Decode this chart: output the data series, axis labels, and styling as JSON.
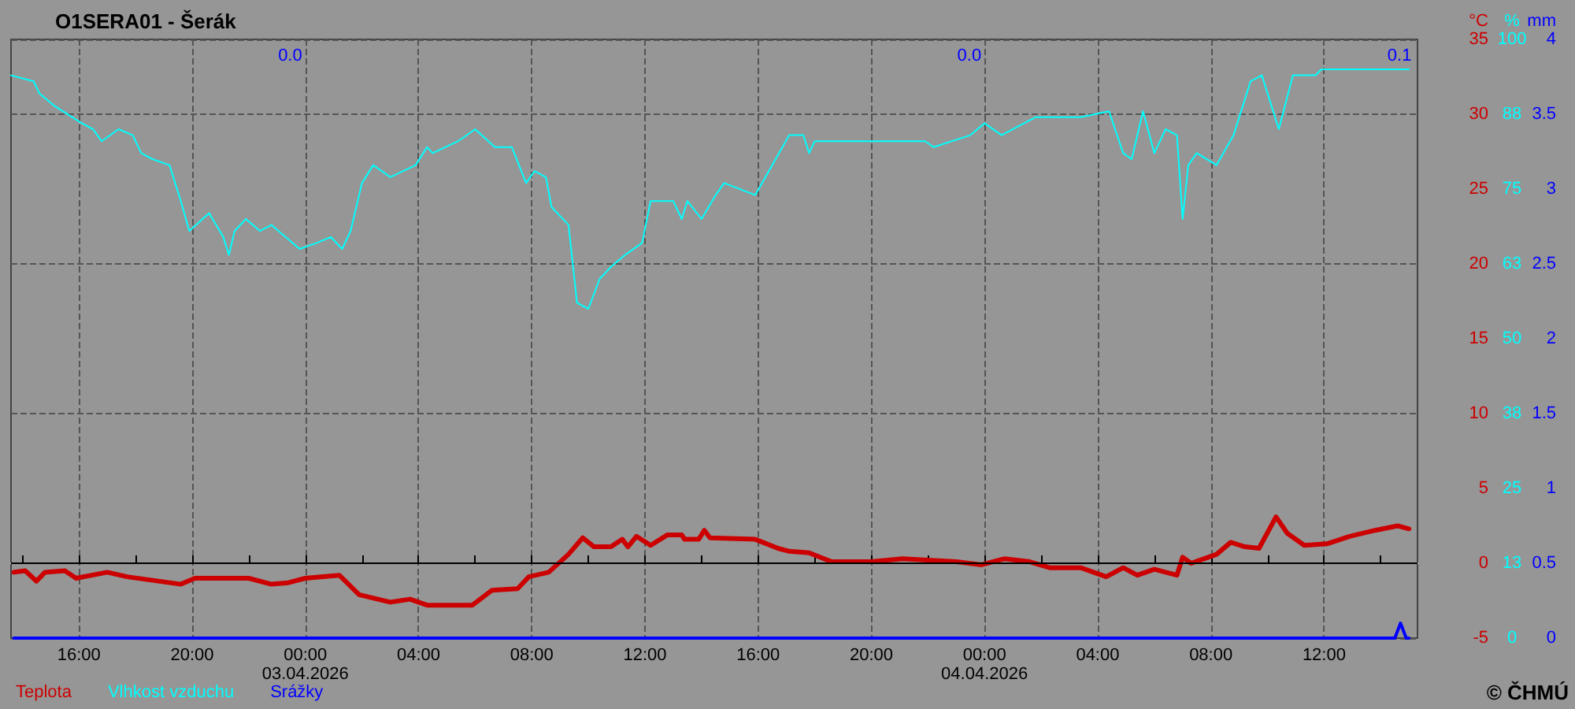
{
  "chart_data": {
    "type": "line",
    "title": "O1SERA01 - Šerák",
    "ylabel": "°C",
    "y2label": "%",
    "y3label": "mm",
    "xlim": [
      "2026-04-02T13:36",
      "2026-04-04T15:18"
    ],
    "xticks": [
      {
        "value": "2026-04-02T14:00",
        "label": null
      },
      {
        "value": "2026-04-02T16:00",
        "label": "16:00"
      },
      {
        "value": "2026-04-02T18:00",
        "label": null
      },
      {
        "value": "2026-04-02T20:00",
        "label": "20:00"
      },
      {
        "value": "2026-04-02T22:00",
        "label": null
      },
      {
        "value": "2026-04-03T00:00",
        "label": "00:00\n03.04.2026"
      },
      {
        "value": "2026-04-03T02:00",
        "label": null
      },
      {
        "value": "2026-04-03T04:00",
        "label": "04:00"
      },
      {
        "value": "2026-04-03T06:00",
        "label": null
      },
      {
        "value": "2026-04-03T08:00",
        "label": "08:00"
      },
      {
        "value": "2026-04-03T10:00",
        "label": null
      },
      {
        "value": "2026-04-03T12:00",
        "label": "12:00"
      },
      {
        "value": "2026-04-03T14:00",
        "label": null
      },
      {
        "value": "2026-04-03T16:00",
        "label": "16:00"
      },
      {
        "value": "2026-04-03T18:00",
        "label": null
      },
      {
        "value": "2026-04-03T20:00",
        "label": "20:00"
      },
      {
        "value": "2026-04-03T22:00",
        "label": null
      },
      {
        "value": "2026-04-04T00:00",
        "label": "00:00\n04.04.2026"
      },
      {
        "value": "2026-04-04T02:00",
        "label": null
      },
      {
        "value": "2026-04-04T04:00",
        "label": "04:00"
      },
      {
        "value": "2026-04-04T06:00",
        "label": null
      },
      {
        "value": "2026-04-04T08:00",
        "label": "08:00"
      },
      {
        "value": "2026-04-04T10:00",
        "label": null
      },
      {
        "value": "2026-04-04T12:00",
        "label": "12:00"
      },
      {
        "value": "2026-04-04T14:00",
        "label": null
      }
    ],
    "ylim": [
      -5,
      35
    ],
    "yticks": [
      -5,
      0,
      5,
      10,
      15,
      20,
      25,
      30,
      35
    ],
    "y2lim": [
      0,
      100
    ],
    "y2ticks": [
      0,
      {
        "value": 12.5,
        "label": "13"
      },
      25,
      {
        "value": 37.5,
        "label": "38"
      },
      50,
      {
        "value": 62.5,
        "label": "63"
      },
      75,
      {
        "value": 87.5,
        "label": "88"
      },
      100
    ],
    "y3lim": [
      0,
      4
    ],
    "y3ticks": [
      0,
      0.5,
      1,
      1.5,
      2,
      2.5,
      3,
      3.5,
      4
    ],
    "grid": true,
    "legend": "bottom left",
    "marker": "none",
    "line_style": "solid",
    "ref_lines": [
      {
        "axis": "y",
        "value": 0,
        "color": "#000000",
        "line_style": "solid"
      }
    ],
    "annotations": [
      "0.0",
      "0.0",
      "0.1",
      "© ČHMÚ"
    ],
    "series": [
      {
        "name": "Teplota",
        "color": "#cc0000",
        "axis": "y",
        "x": [
          "2026-04-02T13:42",
          "2026-04-02T14:06",
          "2026-04-02T14:30",
          "2026-04-02T14:48",
          "2026-04-02T15:30",
          "2026-04-02T15:54",
          "2026-04-02T17:00",
          "2026-04-02T17:42",
          "2026-04-02T19:36",
          "2026-04-02T20:06",
          "2026-04-02T22:00",
          "2026-04-02T22:48",
          "2026-04-02T23:24",
          "2026-04-03T00:00",
          "2026-04-03T01:12",
          "2026-04-03T01:54",
          "2026-04-03T03:00",
          "2026-04-03T03:42",
          "2026-04-03T04:18",
          "2026-04-03T05:54",
          "2026-04-03T06:36",
          "2026-04-03T07:30",
          "2026-04-03T07:54",
          "2026-04-03T08:36",
          "2026-04-03T09:18",
          "2026-04-03T09:48",
          "2026-04-03T10:12",
          "2026-04-03T10:48",
          "2026-04-03T11:12",
          "2026-04-03T11:24",
          "2026-04-03T11:42",
          "2026-04-03T12:12",
          "2026-04-03T12:48",
          "2026-04-03T13:18",
          "2026-04-03T13:24",
          "2026-04-03T13:54",
          "2026-04-03T14:06",
          "2026-04-03T14:18",
          "2026-04-03T15:54",
          "2026-04-03T16:42",
          "2026-04-03T17:06",
          "2026-04-03T17:48",
          "2026-04-03T18:36",
          "2026-04-03T20:00",
          "2026-04-03T21:06",
          "2026-04-03T23:00",
          "2026-04-03T23:54",
          "2026-04-04T00:42",
          "2026-04-04T01:36",
          "2026-04-04T02:18",
          "2026-04-04T03:24",
          "2026-04-04T04:18",
          "2026-04-04T04:54",
          "2026-04-04T05:24",
          "2026-04-04T06:00",
          "2026-04-04T06:48",
          "2026-04-04T07:00",
          "2026-04-04T07:18",
          "2026-04-04T08:12",
          "2026-04-04T08:42",
          "2026-04-04T09:12",
          "2026-04-04T09:42",
          "2026-04-04T10:18",
          "2026-04-04T10:42",
          "2026-04-04T11:18",
          "2026-04-04T12:06",
          "2026-04-04T12:54",
          "2026-04-04T13:48",
          "2026-04-04T14:36",
          "2026-04-04T15:00"
        ],
        "values": [
          -0.6,
          -0.5,
          -1.2,
          -0.6,
          -0.5,
          -1.0,
          -0.6,
          -0.9,
          -1.4,
          -1.0,
          -1.0,
          -1.4,
          -1.3,
          -1.0,
          -0.8,
          -2.1,
          -2.6,
          -2.4,
          -2.8,
          -2.8,
          -1.8,
          -1.7,
          -0.9,
          -0.6,
          0.6,
          1.7,
          1.1,
          1.1,
          1.6,
          1.1,
          1.8,
          1.2,
          1.9,
          1.9,
          1.6,
          1.6,
          2.2,
          1.7,
          1.6,
          1.0,
          0.8,
          0.7,
          0.1,
          0.1,
          0.3,
          0.1,
          -0.1,
          0.3,
          0.1,
          -0.3,
          -0.3,
          -0.9,
          -0.3,
          -0.8,
          -0.4,
          -0.8,
          0.4,
          0.0,
          0.6,
          1.4,
          1.1,
          1.0,
          3.1,
          2.0,
          1.2,
          1.3,
          1.8,
          2.2,
          2.5,
          2.3
        ]
      },
      {
        "name": "Vlhkost vzduchu",
        "color": "#00ffff",
        "axis": "y2",
        "x": [
          "2026-04-02T13:36",
          "2026-04-02T14:24",
          "2026-04-02T14:36",
          "2026-04-02T15:06",
          "2026-04-02T16:06",
          "2026-04-02T16:30",
          "2026-04-02T16:48",
          "2026-04-02T17:24",
          "2026-04-02T17:54",
          "2026-04-02T18:12",
          "2026-04-02T18:36",
          "2026-04-02T19:12",
          "2026-04-02T19:36",
          "2026-04-02T19:54",
          "2026-04-02T20:36",
          "2026-04-02T21:06",
          "2026-04-02T21:18",
          "2026-04-02T21:30",
          "2026-04-02T21:54",
          "2026-04-02T22:24",
          "2026-04-02T22:48",
          "2026-04-02T23:48",
          "2026-04-03T00:24",
          "2026-04-03T00:54",
          "2026-04-03T01:18",
          "2026-04-03T01:36",
          "2026-04-03T02:00",
          "2026-04-03T02:24",
          "2026-04-03T03:00",
          "2026-04-03T03:54",
          "2026-04-03T04:18",
          "2026-04-03T04:30",
          "2026-04-03T05:24",
          "2026-04-03T06:00",
          "2026-04-03T06:42",
          "2026-04-03T07:18",
          "2026-04-03T07:48",
          "2026-04-03T08:06",
          "2026-04-03T08:30",
          "2026-04-03T08:42",
          "2026-04-03T09:18",
          "2026-04-03T09:36",
          "2026-04-03T10:00",
          "2026-04-03T10:24",
          "2026-04-03T10:48",
          "2026-04-03T11:18",
          "2026-04-03T11:54",
          "2026-04-03T12:12",
          "2026-04-03T13:00",
          "2026-04-03T13:18",
          "2026-04-03T13:30",
          "2026-04-03T14:00",
          "2026-04-03T14:30",
          "2026-04-03T14:48",
          "2026-04-03T15:54",
          "2026-04-03T16:30",
          "2026-04-03T17:06",
          "2026-04-03T17:36",
          "2026-04-03T17:48",
          "2026-04-03T18:00",
          "2026-04-03T19:48",
          "2026-04-03T21:54",
          "2026-04-03T22:12",
          "2026-04-03T23:30",
          "2026-04-04T00:00",
          "2026-04-04T00:36",
          "2026-04-04T01:48",
          "2026-04-04T03:24",
          "2026-04-04T04:24",
          "2026-04-04T04:54",
          "2026-04-04T05:12",
          "2026-04-04T05:36",
          "2026-04-04T06:00",
          "2026-04-04T06:24",
          "2026-04-04T06:48",
          "2026-04-04T07:00",
          "2026-04-04T07:12",
          "2026-04-04T07:30",
          "2026-04-04T08:12",
          "2026-04-04T08:48",
          "2026-04-04T09:24",
          "2026-04-04T09:48",
          "2026-04-04T10:24",
          "2026-04-04T10:54",
          "2026-04-04T11:42",
          "2026-04-04T11:54",
          "2026-04-04T12:12",
          "2026-04-04T15:00"
        ],
        "values": [
          94,
          93,
          91,
          89,
          86,
          85,
          83,
          85,
          84,
          81,
          80,
          79,
          73,
          68,
          71,
          67,
          64,
          68,
          70,
          68,
          69,
          65,
          66,
          67,
          65,
          68,
          76,
          79,
          77,
          79,
          82,
          81,
          83,
          85,
          82,
          82,
          76,
          78,
          77,
          72,
          69,
          56,
          55,
          60,
          62,
          64,
          66,
          73,
          73,
          70,
          73,
          70,
          74,
          76,
          74,
          79,
          84,
          84,
          81,
          83,
          83,
          83,
          82,
          84,
          86,
          84,
          87,
          87,
          88,
          81,
          80,
          88,
          81,
          85,
          84,
          70,
          79,
          81,
          79,
          84,
          93,
          94,
          85,
          94,
          94,
          95,
          95,
          95
        ]
      },
      {
        "name": "Srážky",
        "color": "#0000ff",
        "axis": "y3",
        "x": [
          "2026-04-02T13:42",
          "2026-04-04T14:30",
          "2026-04-04T14:42",
          "2026-04-04T14:54",
          "2026-04-04T15:00"
        ],
        "values": [
          0,
          0,
          0.1,
          0,
          0
        ]
      }
    ]
  }
}
